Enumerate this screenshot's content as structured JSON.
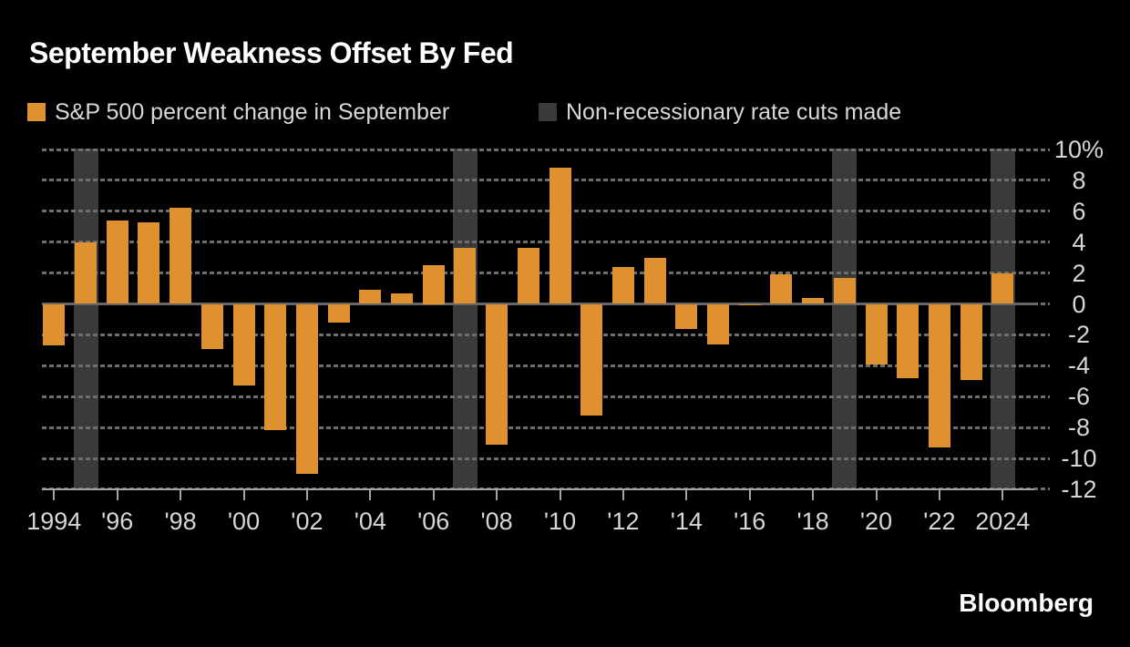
{
  "title": "September Weakness Offset By Fed",
  "legend": [
    {
      "label": "S&P 500 percent change in September",
      "swatch": "#e0912f"
    },
    {
      "label": "Non-recessionary rate cuts made",
      "swatch": "#3a3a3a"
    }
  ],
  "branding": "Bloomberg",
  "chart_data": {
    "type": "bar",
    "title": "September Weakness Offset By Fed",
    "x": [
      1994,
      1995,
      1996,
      1997,
      1998,
      1999,
      2000,
      2001,
      2002,
      2003,
      2004,
      2005,
      2006,
      2007,
      2008,
      2009,
      2010,
      2011,
      2012,
      2013,
      2014,
      2015,
      2016,
      2017,
      2018,
      2019,
      2020,
      2021,
      2022,
      2023,
      2024
    ],
    "series": [
      {
        "name": "S&P 500 percent change in September",
        "values": [
          -2.7,
          4.0,
          5.4,
          5.3,
          6.2,
          -2.9,
          -5.3,
          -8.2,
          -11.0,
          -1.2,
          0.9,
          0.7,
          2.5,
          3.6,
          -9.1,
          3.6,
          8.8,
          -7.2,
          2.4,
          3.0,
          -1.6,
          -2.6,
          -0.1,
          1.9,
          0.4,
          1.7,
          -3.9,
          -4.8,
          -9.3,
          -4.9,
          2.0
        ]
      }
    ],
    "bands": {
      "label": "Non-recessionary rate cuts made",
      "years": [
        1995,
        2007,
        2019,
        2024
      ]
    },
    "xlabel": "",
    "ylabel": "",
    "ylim": [
      -12,
      10
    ],
    "ytick_values": [
      10,
      8,
      6,
      4,
      2,
      0,
      -2,
      -4,
      -6,
      -8,
      -10,
      -12
    ],
    "ytick_labels": [
      "10%",
      "8",
      "6",
      "4",
      "2",
      "0",
      "-2",
      "-4",
      "-6",
      "-8",
      "-10",
      "-12"
    ],
    "xtick_years": [
      1994,
      1996,
      1998,
      2000,
      2002,
      2004,
      2006,
      2008,
      2010,
      2012,
      2014,
      2016,
      2018,
      2020,
      2022,
      2024
    ],
    "xtick_labels": [
      "1994",
      "'96",
      "'98",
      "'00",
      "'02",
      "'04",
      "'06",
      "'08",
      "'10",
      "'12",
      "'14",
      "'16",
      "'18",
      "'20",
      "'22",
      "2024"
    ],
    "grid": "dashed horizontal",
    "legend_position": "top",
    "colors": {
      "background": "#000000",
      "bar": "#e0912f",
      "band": "#3a3a3a",
      "grid": "#6e6e6e",
      "zero_line": "#666666",
      "axis_line": "#a3a3a3",
      "text": "#d6d6d6",
      "title_text": "#ffffff"
    }
  }
}
